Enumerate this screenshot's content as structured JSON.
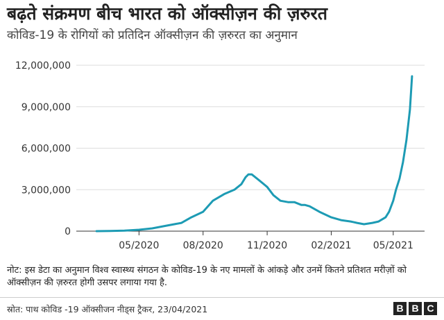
{
  "header": {
    "title": "बढ़ते संक्रमण बीच भारत को ऑक्सीज़न की ज़रुरत",
    "subtitle": "कोविड-19 के रोगियों को प्रतिदिन ऑक्सीज़न की ज़रुरत का अनुमान"
  },
  "chart_data": {
    "type": "line",
    "title": "",
    "xlabel": "",
    "ylabel": "",
    "ylim": [
      0,
      12000000
    ],
    "xlim": [
      "2020-02-01",
      "2021-06-15"
    ],
    "yticks": [
      0,
      3000000,
      6000000,
      9000000,
      12000000
    ],
    "ytick_labels": [
      "0",
      "3,000,000",
      "6,000,000",
      "9,000,000",
      "12,000,000"
    ],
    "xticks": [
      "2020-05-01",
      "2020-08-01",
      "2020-11-01",
      "2021-02-01",
      "2021-05-01"
    ],
    "xtick_labels": [
      "05/2020",
      "08/2020",
      "11/2020",
      "02/2021",
      "05/2021"
    ],
    "grid": "horizontal",
    "line_color": "#1d9bb4",
    "series": [
      {
        "x": [
          "2020-03-01",
          "2020-03-20",
          "2020-04-10",
          "2020-05-01",
          "2020-05-20",
          "2020-06-10",
          "2020-07-01",
          "2020-07-15",
          "2020-08-01",
          "2020-08-15",
          "2020-09-01",
          "2020-09-15",
          "2020-09-25",
          "2020-10-01",
          "2020-10-05",
          "2020-10-10",
          "2020-10-20",
          "2020-11-01",
          "2020-11-10",
          "2020-11-20",
          "2020-12-01",
          "2020-12-10",
          "2020-12-20",
          "2020-12-25",
          "2021-01-01",
          "2021-01-15",
          "2021-02-01",
          "2021-02-15",
          "2021-03-01",
          "2021-03-10",
          "2021-03-20",
          "2021-04-01",
          "2021-04-10",
          "2021-04-20",
          "2021-04-25",
          "2021-05-01",
          "2021-05-05",
          "2021-05-10",
          "2021-05-15",
          "2021-05-20",
          "2021-05-25",
          "2021-05-28"
        ],
        "values": [
          0,
          10000,
          40000,
          100000,
          200000,
          400000,
          600000,
          1000000,
          1400000,
          2200000,
          2700000,
          3000000,
          3400000,
          3900000,
          4100000,
          4100000,
          3700000,
          3200000,
          2600000,
          2200000,
          2100000,
          2100000,
          1900000,
          1900000,
          1800000,
          1400000,
          1000000,
          800000,
          700000,
          600000,
          500000,
          600000,
          700000,
          1000000,
          1400000,
          2200000,
          3000000,
          3800000,
          5000000,
          6600000,
          8800000,
          11200000
        ]
      }
    ]
  },
  "footer": {
    "note": "नोट: इस डेटा का अनुमान विश्व स्वास्थ्य संगठन के कोविड-19 के नए मामलों के आंकड़े और उनमें कितने प्रतिशत मरीज़ों को ऑक्सीज़न की ज़रुरत होगी उसपर लगाया गया है.",
    "source": "स्रोत: पाथ कोविड -19 ऑक्सीजन नीड्स ट्रैकर, 23/04/2021",
    "logo_letters": [
      "B",
      "B",
      "C"
    ]
  }
}
